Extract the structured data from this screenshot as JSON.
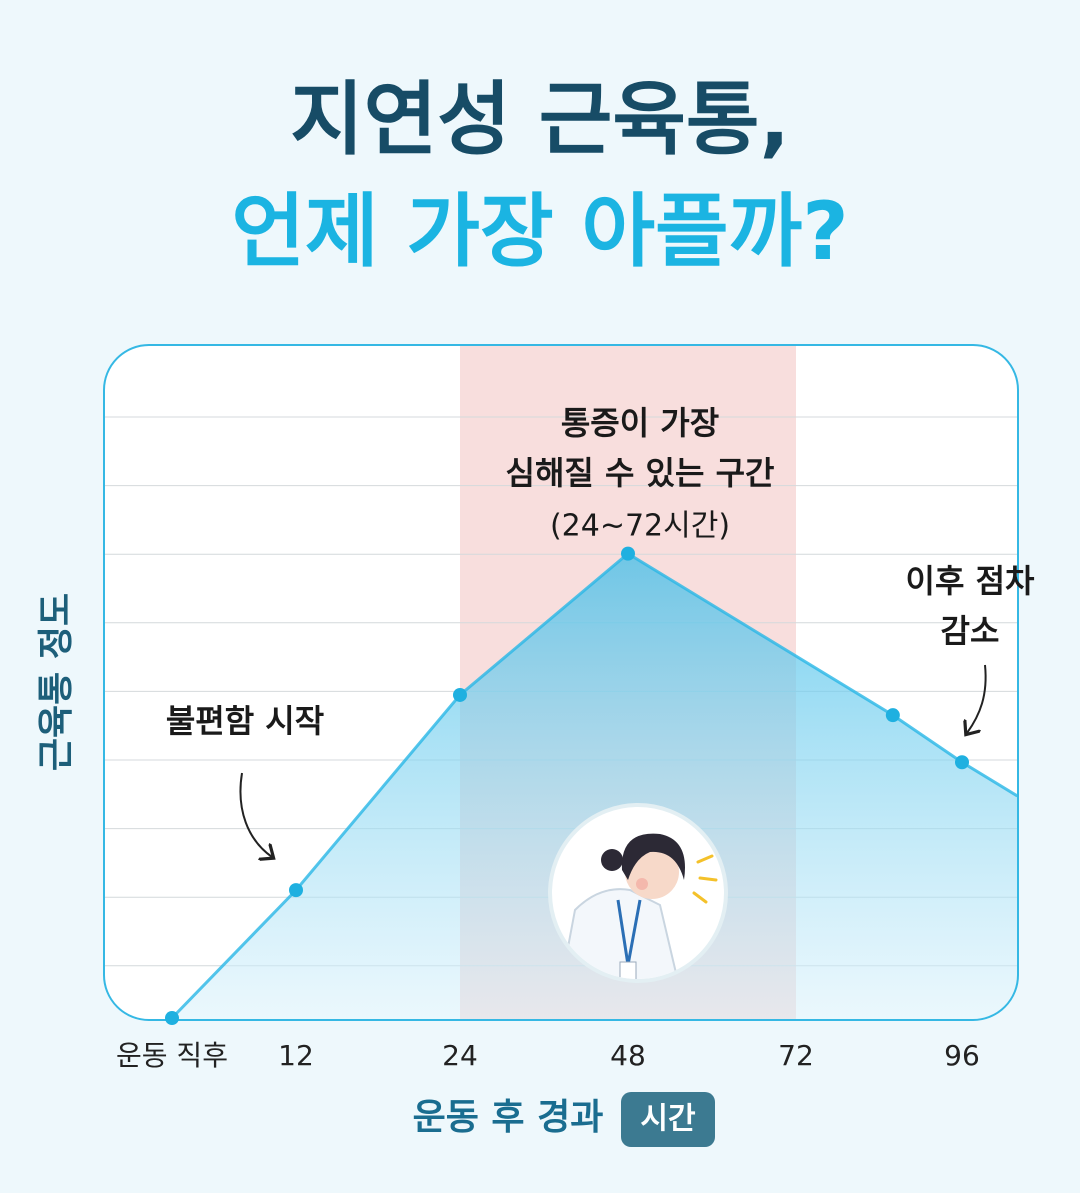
{
  "chart_data": {
    "type": "area",
    "title": "지연성 근육통,",
    "subtitle": "언제 가장 아플까?",
    "y_label": "근육통 정도",
    "x_label": "운동 후 경과",
    "x_unit": "시간",
    "xlim": [
      0,
      104
    ],
    "ylim": [
      0,
      100
    ],
    "xticks": [
      {
        "value": 0,
        "label": "운동 직후"
      },
      12,
      24,
      48,
      72,
      96
    ],
    "series": [
      {
        "color": "#29b6e6",
        "x": [
          0,
          12,
          24,
          48,
          86,
          96,
          104
        ],
        "values": [
          0,
          19,
          48,
          69,
          45,
          38,
          33
        ]
      }
    ],
    "highlight": {
      "range": [
        24,
        72
      ],
      "color": "#f8dedd"
    },
    "annotations": [
      {
        "lines": [
          "통증이 가장",
          "심해질 수 있는 구간"
        ],
        "note": "(24~72시간)"
      },
      {
        "lines": [
          "불편함 시작"
        ]
      },
      {
        "lines": [
          "이후 점차",
          "감소"
        ]
      }
    ]
  }
}
